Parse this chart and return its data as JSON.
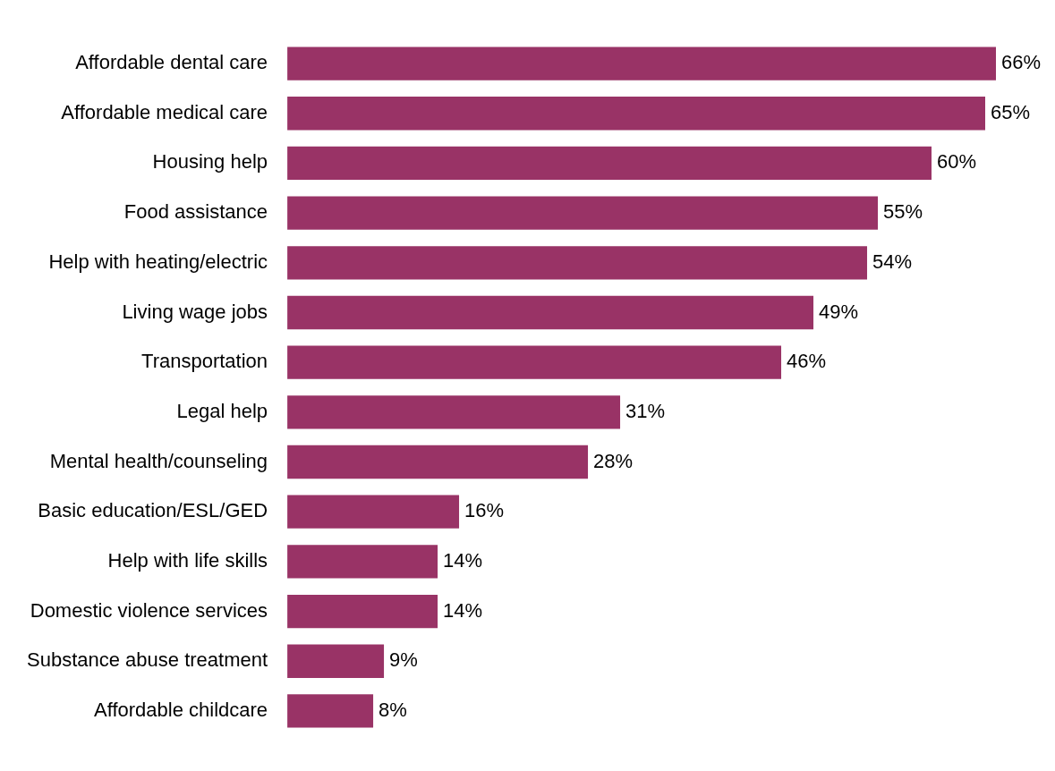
{
  "chart_data": {
    "type": "bar",
    "orientation": "horizontal",
    "categories": [
      "Affordable dental care",
      "Affordable medical care",
      "Housing help",
      "Food assistance",
      "Help with heating/electric",
      "Living wage jobs",
      "Transportation",
      "Legal help",
      "Mental health/counseling",
      "Basic education/ESL/GED",
      "Help with life skills",
      "Domestic violence services",
      "Substance abuse treatment",
      "Affordable childcare"
    ],
    "values": [
      66,
      65,
      60,
      55,
      54,
      49,
      46,
      31,
      28,
      16,
      14,
      14,
      9,
      8
    ],
    "value_labels": [
      "66%",
      "65%",
      "60%",
      "55%",
      "54%",
      "49%",
      "46%",
      "31%",
      "28%",
      "16%",
      "14%",
      "14%",
      "9%",
      "8%"
    ],
    "color": "#993366",
    "grid": false,
    "legend": false
  }
}
